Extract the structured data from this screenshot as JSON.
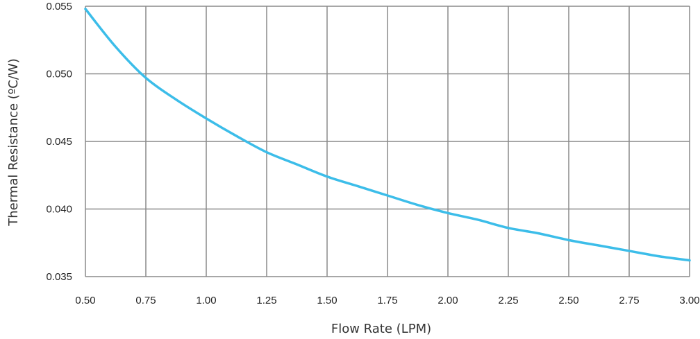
{
  "chart_data": {
    "type": "line",
    "title": "",
    "xlabel": "Flow Rate (LPM)",
    "ylabel": "Thermal Resistance (ºC/W)",
    "xlim": [
      0.5,
      3.0
    ],
    "ylim": [
      0.035,
      0.055
    ],
    "x_ticks": [
      "0.50",
      "0.75",
      "1.00",
      "1.25",
      "1.50",
      "1.75",
      "2.00",
      "2.25",
      "2.50",
      "2.75",
      "3.00"
    ],
    "y_ticks": [
      "0.055",
      "0.050",
      "0.045",
      "0.040",
      "0.035"
    ],
    "grid": true,
    "legend": "none",
    "series": [
      {
        "color": "#3cbde9",
        "x": [
          0.5,
          0.625,
          0.75,
          0.875,
          1.0,
          1.125,
          1.25,
          1.375,
          1.5,
          1.625,
          1.75,
          1.875,
          2.0,
          2.125,
          2.25,
          2.375,
          2.5,
          2.625,
          2.75,
          2.875,
          3.0
        ],
        "y": [
          0.0548,
          0.052,
          0.0497,
          0.0481,
          0.0467,
          0.0454,
          0.0442,
          0.0433,
          0.0424,
          0.0417,
          0.041,
          0.0403,
          0.0397,
          0.0392,
          0.0386,
          0.0382,
          0.0377,
          0.0373,
          0.0369,
          0.0365,
          0.0362
        ]
      }
    ]
  }
}
